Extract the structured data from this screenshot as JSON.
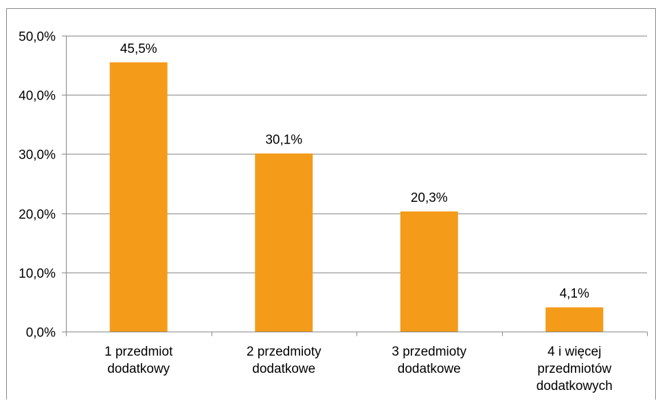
{
  "chart_data": {
    "type": "bar",
    "title": "",
    "xlabel": "",
    "ylabel": "",
    "categories": [
      [
        "1 przedmiot",
        "dodatkowy"
      ],
      [
        "2 przedmioty",
        "dodatkowe"
      ],
      [
        "3 przedmioty",
        "dodatkowe"
      ],
      [
        "4 i więcej",
        "przedmiotów",
        "dodatkowych"
      ]
    ],
    "values": [
      45.5,
      30.1,
      20.3,
      4.1
    ],
    "data_labels": [
      "45,5%",
      "30,1%",
      "20,3%",
      "4,1%"
    ],
    "y_ticks": [
      0,
      10,
      20,
      30,
      40,
      50
    ],
    "y_tick_labels": [
      "0,0%",
      "10,0%",
      "20,0%",
      "30,0%",
      "40,0%",
      "50,0%"
    ],
    "ylim": [
      0,
      50
    ],
    "grid": true,
    "legend": "none",
    "colors": {
      "bar": "#F49B19",
      "grid": "#868686",
      "axis": "#868686",
      "frame": "#868686"
    }
  }
}
